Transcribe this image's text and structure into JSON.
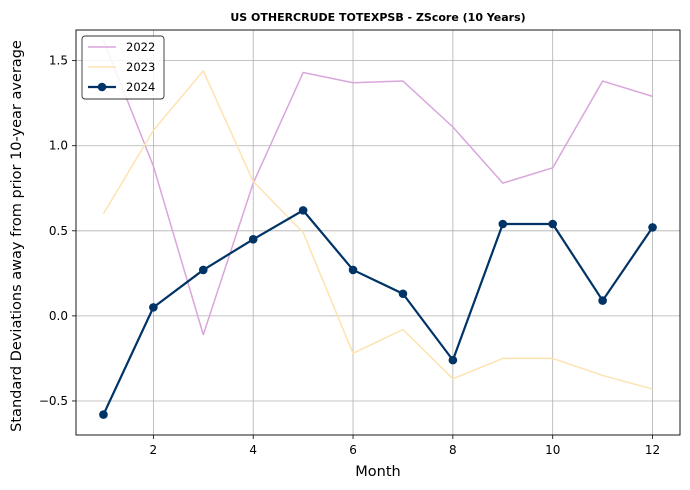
{
  "chart_data": {
    "type": "line",
    "title": "US OTHERCRUDE TOTEXPSB - ZScore (10 Years)",
    "xlabel": "Month",
    "ylabel": "Standard Deviations away from prior 10-year average",
    "x": [
      1,
      2,
      3,
      4,
      5,
      6,
      7,
      8,
      9,
      10,
      11,
      12
    ],
    "xlim": [
      0.45,
      12.55
    ],
    "ylim": [
      -0.7,
      1.68
    ],
    "xticks": [
      2,
      4,
      6,
      8,
      10,
      12
    ],
    "yticks": [
      -0.5,
      0.0,
      0.5,
      1.0,
      1.5
    ],
    "xtick_labels": [
      "2",
      "4",
      "6",
      "8",
      "10",
      "12"
    ],
    "ytick_labels": [
      "−0.5",
      "0.0",
      "0.5",
      "1.0",
      "1.5"
    ],
    "grid": true,
    "legend_position": "top-left",
    "series": [
      {
        "name": "2022",
        "color": "#d9a6dc",
        "values": [
          1.62,
          0.88,
          -0.11,
          0.78,
          1.43,
          1.37,
          1.38,
          1.11,
          0.78,
          0.87,
          1.38,
          1.29
        ]
      },
      {
        "name": "2023",
        "color": "#fde3b0",
        "values": [
          0.6,
          1.09,
          1.44,
          0.79,
          0.49,
          -0.22,
          -0.08,
          -0.37,
          -0.25,
          -0.25,
          -0.35,
          -0.43
        ]
      },
      {
        "name": "2024",
        "color": "#003366",
        "values": [
          -0.58,
          0.05,
          0.27,
          0.45,
          0.62,
          0.27,
          0.13,
          -0.26,
          0.54,
          0.54,
          0.09,
          0.52
        ]
      }
    ]
  }
}
